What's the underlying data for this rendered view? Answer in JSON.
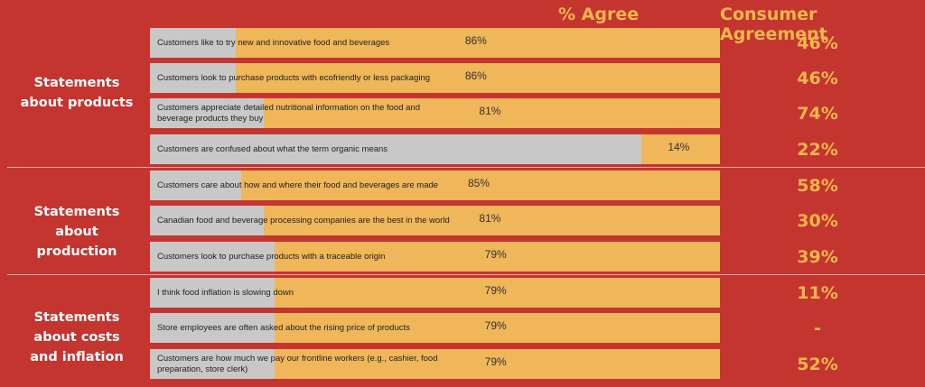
{
  "headers": {
    "agree": "% Agree",
    "consumer": "Consumer Agreement"
  },
  "groups": [
    {
      "label": "Statements about products"
    },
    {
      "label": "Statements about production"
    },
    {
      "label": "Statements about costs and inflation"
    }
  ],
  "chart_data": {
    "type": "bar",
    "categories": [
      "Customers like to try new and innovative food and beverages",
      "Customers look to purchase products with ecofriendly or less packaging",
      "Customers appreciate detailed nutritional information on the food and beverage products they buy",
      "Customers are confused about what the term organic means",
      "Customers care about how and where their food and beverages are made",
      "Canadian food and beverage processing companies are the best in the world",
      "Customers look to purchase products with a traceable origin",
      "I think food inflation is slowing down",
      "Store employees are often asked about the rising price of products",
      "Customers are how much we pay our frontline workers (e.g., cashier, food preparation, store clerk)"
    ],
    "series": [
      {
        "name": "% Agree",
        "values": [
          86,
          86,
          81,
          14,
          85,
          81,
          79,
          79,
          79,
          79
        ],
        "labels": [
          "86%",
          "86%",
          "81%",
          "14%",
          "85%",
          "81%",
          "79%",
          "79%",
          "79%",
          "79%"
        ]
      },
      {
        "name": "Consumer Agreement",
        "labels": [
          "46%",
          "46%",
          "74%",
          "22%",
          "58%",
          "30%",
          "39%",
          "11%",
          "-",
          "52%"
        ]
      }
    ],
    "xlim": [
      0,
      100
    ]
  },
  "colors": {
    "background": "#c43530",
    "bar_fill": "#efb65a",
    "bar_track": "#c8c8c8",
    "accent_text": "#f2b84b"
  }
}
